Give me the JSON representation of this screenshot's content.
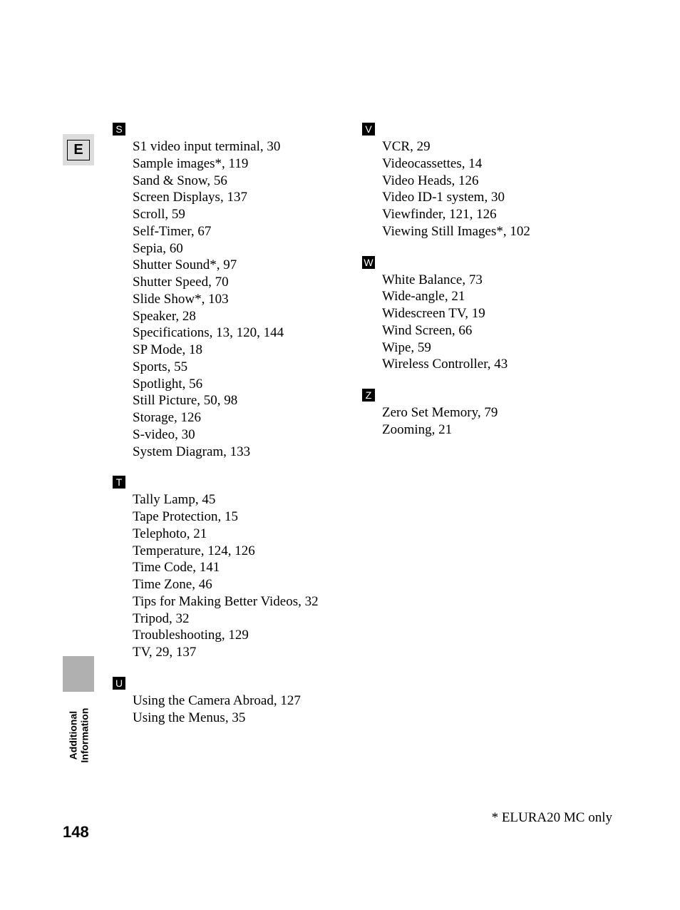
{
  "lang_badge": "E",
  "page_number": "148",
  "sidebar_label_line1": "Additional",
  "sidebar_label_line2": "Information",
  "footnote": "* ELURA20 MC only",
  "columns": {
    "left": [
      {
        "letter": "S",
        "entries": [
          "S1 video input terminal, 30",
          "Sample images*, 119",
          "Sand & Snow, 56",
          "Screen Displays, 137",
          "Scroll, 59",
          "Self-Timer, 67",
          "Sepia, 60",
          "Shutter Sound*, 97",
          "Shutter Speed, 70",
          "Slide Show*, 103",
          "Speaker, 28",
          "Specifications, 13, 120, 144",
          "SP Mode, 18",
          "Sports, 55",
          "Spotlight, 56",
          "Still Picture, 50, 98",
          "Storage, 126",
          "S-video, 30",
          "System Diagram, 133"
        ]
      },
      {
        "letter": "T",
        "entries": [
          "Tally Lamp, 45",
          "Tape Protection, 15",
          "Telephoto, 21",
          "Temperature, 124, 126",
          "Time Code, 141",
          "Time Zone, 46",
          "Tips for Making Better Videos, 32",
          "Tripod, 32",
          "Troubleshooting, 129",
          "TV, 29, 137"
        ]
      },
      {
        "letter": "U",
        "entries": [
          "Using the Camera Abroad, 127",
          "Using the Menus, 35"
        ]
      }
    ],
    "right": [
      {
        "letter": "V",
        "entries": [
          "VCR, 29",
          "Videocassettes, 14",
          "Video Heads, 126",
          "Video ID-1 system, 30",
          "Viewfinder, 121, 126",
          "Viewing Still Images*, 102"
        ]
      },
      {
        "letter": "W",
        "entries": [
          "White Balance, 73",
          "Wide-angle, 21",
          "Widescreen TV, 19",
          "Wind Screen, 66",
          "Wipe, 59",
          "Wireless Controller, 43"
        ]
      },
      {
        "letter": "Z",
        "entries": [
          "Zero Set Memory, 79",
          "Zooming, 21"
        ]
      }
    ]
  }
}
